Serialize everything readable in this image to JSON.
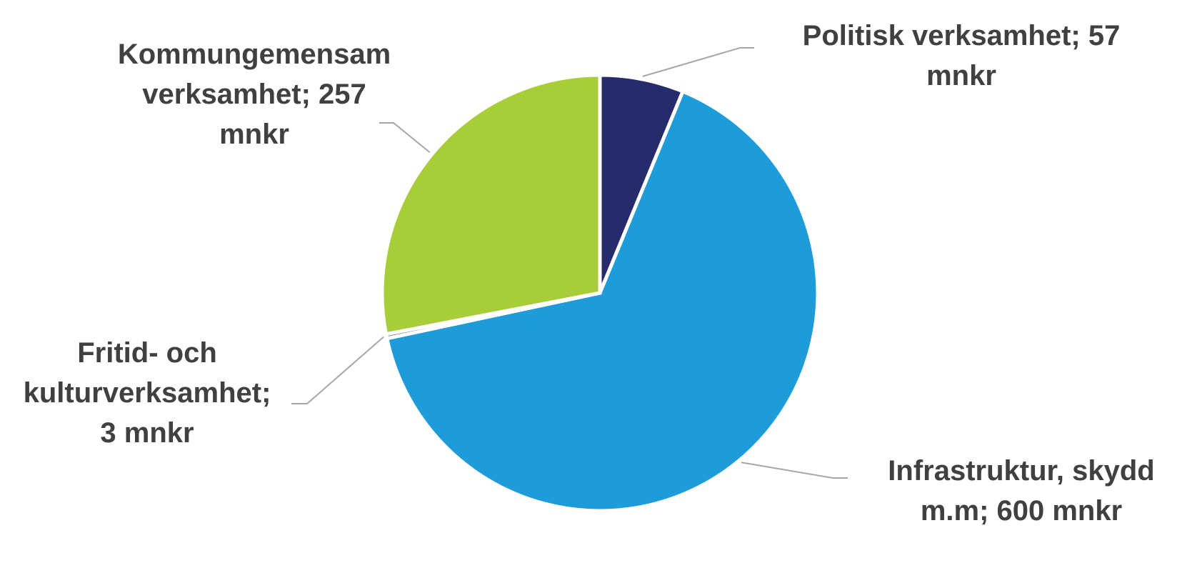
{
  "chart_data": {
    "type": "pie",
    "categories": [
      "Politisk verksamhet; 57 mnkr",
      "Infrastruktur, skydd m.m; 600 mnkr",
      "Fritid- och kulturverksamhet; 3 mnkr",
      "Kommungemensam verksamhet; 257 mnkr"
    ],
    "values": [
      57,
      600,
      3,
      257
    ],
    "colors": [
      "#262c6b",
      "#1e9cd9",
      "#8c8c8c",
      "#a7ce38"
    ]
  }
}
